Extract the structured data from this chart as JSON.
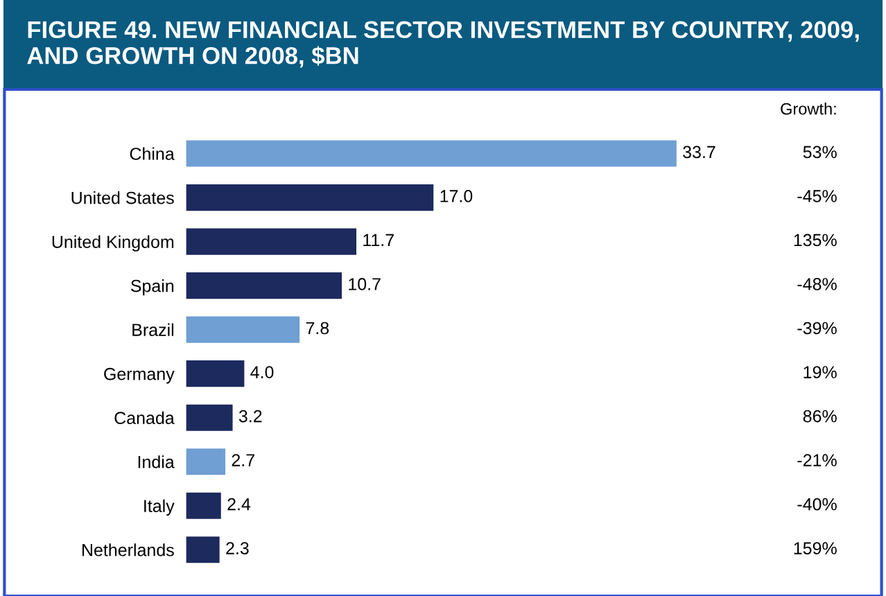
{
  "chart_data": {
    "type": "bar",
    "orientation": "horizontal",
    "title": "FIGURE 49. NEW FINANCIAL SECTOR INVESTMENT BY COUNTRY, 2009, AND GROWTH ON 2008, $BN",
    "categories": [
      "China",
      "United States",
      "United Kingdom",
      "Spain",
      "Brazil",
      "Germany",
      "Canada",
      "India",
      "Italy",
      "Netherlands"
    ],
    "values": [
      33.7,
      17.0,
      11.7,
      10.7,
      7.8,
      4.0,
      3.2,
      2.7,
      2.4,
      2.3
    ],
    "value_labels": [
      "33.7",
      "17.0",
      "11.7",
      "10.7",
      "7.8",
      "4.0",
      "3.2",
      "2.7",
      "2.4",
      "2.3"
    ],
    "colors": [
      "#6f9fd3",
      "#1c2a5e",
      "#1c2a5e",
      "#1c2a5e",
      "#6f9fd3",
      "#1c2a5e",
      "#1c2a5e",
      "#6f9fd3",
      "#1c2a5e",
      "#1c2a5e"
    ],
    "annotations": [
      "Growth:",
      "53%",
      "-45%",
      "135%",
      "-48%",
      "-39%",
      "19%",
      "86%",
      "-21%",
      "-40%",
      "159%"
    ],
    "grid": false,
    "legend": false
  }
}
